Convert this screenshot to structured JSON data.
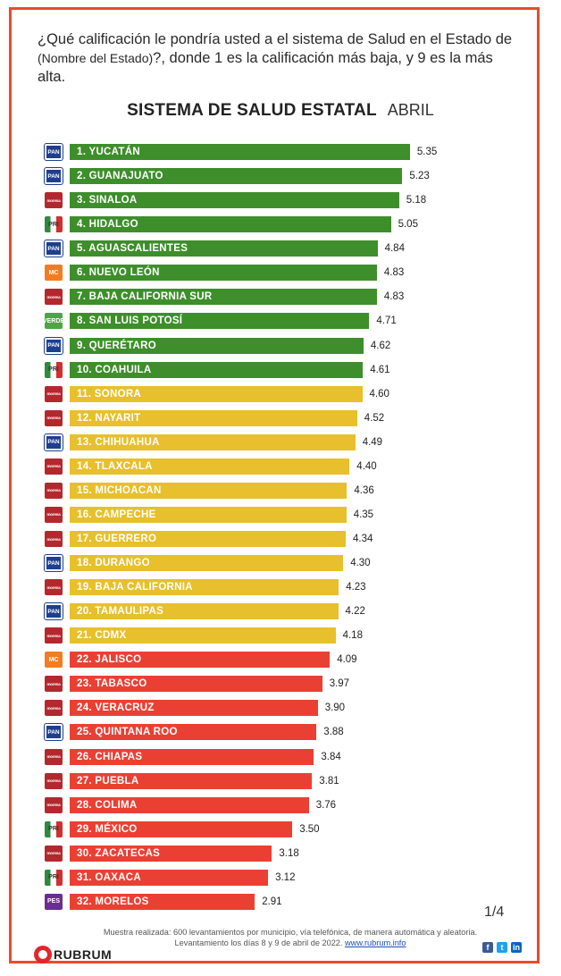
{
  "question": {
    "part1": "¿Qué calificación le pondría usted a el sistema de Salud en el Estado de ",
    "part2": "(Nombre del Estado)",
    "part3": "?, donde 1 es la calificación más baja, y 9 es la más alta."
  },
  "heading": {
    "title": "SISTEMA DE SALUD ESTATAL",
    "month": "ABRIL"
  },
  "colors": {
    "green": "#3e8e2c",
    "yellow": "#e8bf2c",
    "red": "#ea4034",
    "frame": "#ea4a2f"
  },
  "chart_data": {
    "type": "bar",
    "orientation": "horizontal",
    "categories": [
      "1. YUCATÁN",
      "2. GUANAJUATO",
      "3. SINALOA",
      "4. HIDALGO",
      "5. AGUASCALIENTES",
      "6. NUEVO LEÓN",
      "7. BAJA CALIFORNIA SUR",
      "8. SAN LUIS POTOSÍ",
      "9. QUERÉTARO",
      "10. COAHUILA",
      "11. SONORA",
      "12. NAYARIT",
      "13. CHIHUAHUA",
      "14. TLAXCALA",
      "15. MICHOACAN",
      "16. CAMPECHE",
      "17. GUERRERO",
      "18. DURANGO",
      "19. BAJA CALIFORNIA",
      "20. TAMAULIPAS",
      "21. CDMX",
      "22. JALISCO",
      "23. TABASCO",
      "24. VERACRUZ",
      "25. QUINTANA ROO",
      "26. CHIAPAS",
      "27. PUEBLA",
      "28. COLIMA",
      "29. MÉXICO",
      "30. ZACATECAS",
      "31. OAXACA",
      "32. MORELOS"
    ],
    "values": [
      5.35,
      5.23,
      5.18,
      5.05,
      4.84,
      4.83,
      4.83,
      4.71,
      4.62,
      4.61,
      4.6,
      4.52,
      4.49,
      4.4,
      4.36,
      4.35,
      4.34,
      4.3,
      4.23,
      4.22,
      4.18,
      4.09,
      3.97,
      3.9,
      3.88,
      3.84,
      3.81,
      3.76,
      3.5,
      3.18,
      3.12,
      2.91
    ],
    "value_labels": [
      "5.35",
      "5.23",
      "5.18",
      "5.05",
      "4.84",
      "4.83",
      "4.83",
      "4.71",
      "4.62",
      "4.61",
      "4.60",
      "4.52",
      "4.49",
      "4.40",
      "4.36",
      "4.35",
      "4.34",
      "4.30",
      "4.23",
      "4.22",
      "4.18",
      "4.09",
      "3.97",
      "3.90",
      "3.88",
      "3.84",
      "3.81",
      "3.76",
      "3.50",
      "3.18",
      "3.12",
      "2.91"
    ],
    "bar_colors": [
      "green",
      "green",
      "green",
      "green",
      "green",
      "green",
      "green",
      "green",
      "green",
      "green",
      "yellow",
      "yellow",
      "yellow",
      "yellow",
      "yellow",
      "yellow",
      "yellow",
      "yellow",
      "yellow",
      "yellow",
      "yellow",
      "red",
      "red",
      "red",
      "red",
      "red",
      "red",
      "red",
      "red",
      "red",
      "red",
      "red"
    ],
    "party_logos": [
      "pan",
      "pan",
      "morena",
      "pri",
      "pan",
      "mc",
      "morena",
      "pvem",
      "pan",
      "pri",
      "morena",
      "morena",
      "pan",
      "morena",
      "morena",
      "morena",
      "morena",
      "pan",
      "morena",
      "pan",
      "morena",
      "mc",
      "morena",
      "morena",
      "pan",
      "morena",
      "morena",
      "morena",
      "pri",
      "morena",
      "pri",
      "pes"
    ],
    "party_logo_texts": {
      "pan": "PAN",
      "morena": "morena",
      "pri": "PRI",
      "mc": "MC",
      "pvem": "VERDE",
      "pes": "PES"
    }
  },
  "footer": {
    "page": "1/4",
    "line1": "Muestra realizada: 600 levantamientos por municipio, vía telefónica, de manera automática y aleatoria.",
    "line2": "Levantamiento los días 8 y 9 de abril de 2022.",
    "link": "www.rubrum.info",
    "brand": "RUBRUM"
  }
}
